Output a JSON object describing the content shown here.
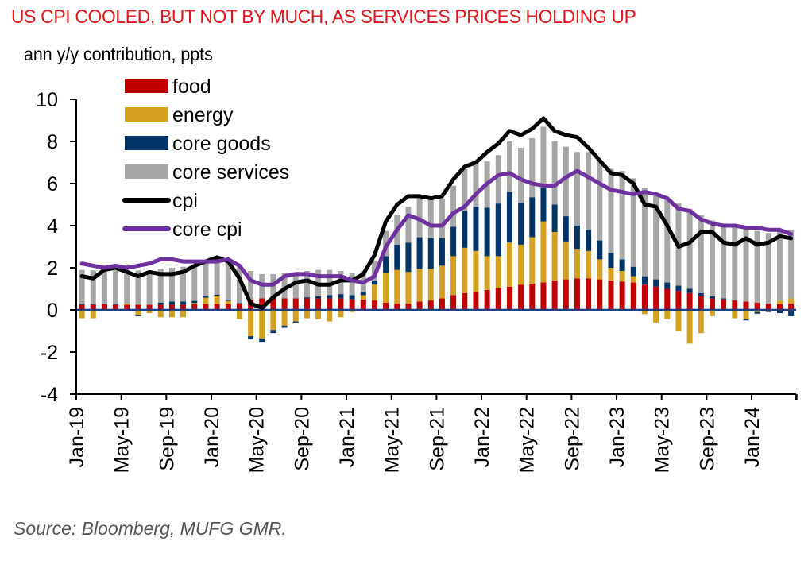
{
  "header": {
    "title": "US CPI COOLED, BUT NOT BY MUCH, AS SERVICES PRICES HOLDING UP",
    "subtitle": "ann y/y  contribution, ppts"
  },
  "footer": {
    "source": "Source: Bloomberg, MUFG GMR."
  },
  "chart_data": {
    "type": "bar",
    "stacked": true,
    "title": "US CPI COOLED, BUT NOT BY MUCH, AS SERVICES PRICES HOLDING UP",
    "ylabel": "ann y/y  contribution, ppts",
    "xlabel": "",
    "ylim": [
      -4,
      10
    ],
    "yticks": [
      10,
      8,
      6,
      4,
      2,
      0,
      -2,
      -4
    ],
    "grid": false,
    "legend_position": "top-left",
    "x_tick_labels": [
      "Jan-19",
      "May-19",
      "Sep-19",
      "Jan-20",
      "May-20",
      "Sep-20",
      "Jan-21",
      "May-21",
      "Sep-21",
      "Jan-22",
      "May-22",
      "Sep-22",
      "Jan-23",
      "May-23",
      "Sep-23",
      "Jan-24"
    ],
    "x_tick_every": 4,
    "categories": [
      "Jan-19",
      "Feb-19",
      "Mar-19",
      "Apr-19",
      "May-19",
      "Jun-19",
      "Jul-19",
      "Aug-19",
      "Sep-19",
      "Oct-19",
      "Nov-19",
      "Dec-19",
      "Jan-20",
      "Feb-20",
      "Mar-20",
      "Apr-20",
      "May-20",
      "Jun-20",
      "Jul-20",
      "Aug-20",
      "Sep-20",
      "Oct-20",
      "Nov-20",
      "Dec-20",
      "Jan-21",
      "Feb-21",
      "Mar-21",
      "Apr-21",
      "May-21",
      "Jun-21",
      "Jul-21",
      "Aug-21",
      "Sep-21",
      "Oct-21",
      "Nov-21",
      "Dec-21",
      "Jan-22",
      "Feb-22",
      "Mar-22",
      "Apr-22",
      "May-22",
      "Jun-22",
      "Jul-22",
      "Aug-22",
      "Sep-22",
      "Oct-22",
      "Nov-22",
      "Dec-22",
      "Jan-23",
      "Feb-23",
      "Mar-23",
      "Apr-23",
      "May-23",
      "Jun-23",
      "Jul-23",
      "Aug-23",
      "Sep-23",
      "Oct-23",
      "Nov-23",
      "Dec-23",
      "Jan-24",
      "Feb-24",
      "Mar-24",
      "Apr-24"
    ],
    "bar_series": [
      {
        "name": "food",
        "color": "#c00000",
        "values": [
          0.25,
          0.25,
          0.28,
          0.25,
          0.25,
          0.25,
          0.25,
          0.25,
          0.25,
          0.25,
          0.28,
          0.28,
          0.28,
          0.28,
          0.3,
          0.5,
          0.55,
          0.6,
          0.55,
          0.55,
          0.55,
          0.55,
          0.55,
          0.55,
          0.5,
          0.5,
          0.45,
          0.35,
          0.3,
          0.3,
          0.4,
          0.45,
          0.55,
          0.7,
          0.8,
          0.85,
          0.95,
          1.05,
          1.1,
          1.2,
          1.25,
          1.3,
          1.4,
          1.45,
          1.5,
          1.5,
          1.45,
          1.4,
          1.35,
          1.3,
          1.2,
          1.1,
          1.0,
          0.9,
          0.8,
          0.65,
          0.55,
          0.5,
          0.45,
          0.4,
          0.35,
          0.3,
          0.28,
          0.3
        ]
      },
      {
        "name": "energy",
        "color": "#d4a020",
        "values": [
          -0.4,
          -0.4,
          0.0,
          0.0,
          0.05,
          -0.25,
          -0.15,
          -0.35,
          -0.35,
          -0.35,
          0.05,
          0.3,
          0.4,
          0.15,
          -0.45,
          -1.25,
          -1.35,
          -0.95,
          -0.75,
          -0.55,
          -0.4,
          -0.45,
          -0.55,
          -0.35,
          -0.1,
          0.2,
          0.75,
          1.4,
          1.6,
          1.5,
          1.55,
          1.5,
          1.55,
          1.85,
          2.15,
          1.95,
          1.6,
          1.5,
          2.1,
          1.9,
          2.2,
          2.9,
          2.3,
          1.8,
          1.4,
          1.3,
          0.95,
          0.6,
          0.5,
          0.3,
          -0.2,
          -0.6,
          -0.45,
          -1.0,
          -1.6,
          -1.1,
          -0.3,
          0.0,
          -0.4,
          -0.45,
          -0.1,
          0.0,
          0.15,
          0.25
        ]
      },
      {
        "name": "core goods",
        "color": "#003366",
        "values": [
          0.05,
          0.03,
          0.03,
          0.03,
          0.0,
          -0.05,
          0.0,
          0.1,
          0.15,
          0.15,
          0.1,
          0.1,
          0.05,
          0.05,
          0.02,
          -0.15,
          -0.2,
          -0.15,
          -0.1,
          -0.05,
          0.05,
          0.1,
          0.15,
          0.2,
          0.2,
          0.15,
          0.2,
          0.8,
          1.2,
          1.4,
          1.5,
          1.45,
          1.3,
          1.4,
          1.75,
          2.1,
          2.3,
          2.5,
          2.4,
          2.0,
          1.9,
          1.6,
          1.3,
          1.2,
          1.1,
          1.0,
          0.9,
          0.7,
          0.55,
          0.45,
          0.4,
          0.35,
          0.3,
          0.25,
          0.2,
          0.15,
          0.1,
          0.05,
          0.0,
          -0.05,
          -0.08,
          -0.1,
          -0.15,
          -0.3
        ]
      },
      {
        "name": "core services",
        "color": "#a6a6a6",
        "values": [
          1.6,
          1.6,
          1.6,
          1.6,
          1.6,
          1.62,
          1.6,
          1.6,
          1.6,
          1.65,
          1.65,
          1.65,
          1.7,
          1.75,
          1.7,
          1.35,
          1.15,
          1.1,
          1.2,
          1.25,
          1.25,
          1.25,
          1.2,
          1.1,
          1.05,
          1.0,
          0.95,
          1.2,
          1.4,
          1.7,
          1.9,
          1.95,
          1.9,
          1.95,
          2.0,
          2.1,
          2.2,
          2.3,
          2.4,
          2.6,
          2.8,
          2.9,
          3.0,
          3.3,
          3.5,
          3.7,
          3.8,
          4.0,
          4.2,
          4.2,
          4.2,
          4.1,
          4.0,
          3.9,
          3.8,
          3.7,
          3.6,
          3.55,
          3.5,
          3.45,
          3.4,
          3.35,
          3.3,
          3.25
        ]
      }
    ],
    "line_series": [
      {
        "name": "cpi",
        "color": "#000000",
        "values": [
          1.6,
          1.5,
          1.9,
          2.0,
          1.8,
          1.6,
          1.8,
          1.7,
          1.7,
          1.8,
          2.1,
          2.3,
          2.5,
          2.3,
          1.5,
          0.3,
          0.1,
          0.6,
          1.0,
          1.3,
          1.4,
          1.2,
          1.2,
          1.4,
          1.4,
          1.7,
          2.6,
          4.2,
          5.0,
          5.4,
          5.4,
          5.3,
          5.4,
          6.2,
          6.8,
          7.0,
          7.5,
          7.9,
          8.5,
          8.3,
          8.6,
          9.1,
          8.5,
          8.3,
          8.2,
          7.7,
          7.1,
          6.5,
          6.4,
          6.0,
          5.0,
          4.9,
          4.0,
          3.0,
          3.2,
          3.7,
          3.7,
          3.2,
          3.1,
          3.4,
          3.1,
          3.2,
          3.5,
          3.4
        ]
      },
      {
        "name": "core cpi",
        "color": "#7030a0",
        "values": [
          2.2,
          2.1,
          2.0,
          2.1,
          2.0,
          2.1,
          2.2,
          2.4,
          2.4,
          2.3,
          2.3,
          2.3,
          2.3,
          2.4,
          2.1,
          1.4,
          1.2,
          1.2,
          1.6,
          1.7,
          1.7,
          1.6,
          1.6,
          1.6,
          1.4,
          1.3,
          1.6,
          3.0,
          3.8,
          4.5,
          4.3,
          4.0,
          4.0,
          4.6,
          4.9,
          5.5,
          6.0,
          6.4,
          6.5,
          6.2,
          6.0,
          5.9,
          5.9,
          6.3,
          6.6,
          6.3,
          6.0,
          5.7,
          5.6,
          5.5,
          5.6,
          5.5,
          5.3,
          4.8,
          4.7,
          4.3,
          4.1,
          4.0,
          4.0,
          3.9,
          3.9,
          3.8,
          3.8,
          3.6
        ]
      }
    ]
  }
}
